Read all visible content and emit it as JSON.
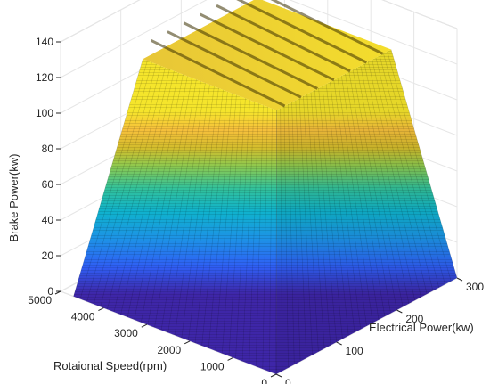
{
  "chart_data": {
    "type": "surface3d",
    "title": "",
    "xlabel": "Electrical Power(kw)",
    "ylabel": "Rotaional Speed(rpm)",
    "zlabel": "Brake Power(kw)",
    "x_ticks": [
      "0",
      "100",
      "200",
      "300"
    ],
    "y_ticks": [
      "0",
      "1000",
      "2000",
      "3000",
      "4000",
      "5000"
    ],
    "z_ticks": [
      "0",
      "20",
      "40",
      "60",
      "80",
      "100",
      "120",
      "140"
    ],
    "xlim": [
      0,
      300
    ],
    "ylim": [
      0,
      5000
    ],
    "zlim": [
      0,
      140
    ],
    "grid": true,
    "colormap": "parula",
    "surface": {
      "base_corners": {
        "electrical_power_kw": [
          0,
          300
        ],
        "rotational_speed_rpm": [
          0,
          4700
        ]
      },
      "plateau_corners": {
        "electrical_power_kw": [
          65,
          255
        ],
        "rotational_speed_rpm": [
          900,
          4000
        ]
      },
      "max_brake_power_kw": 128,
      "ridge_peak_brake_power_kw": 136
    }
  }
}
